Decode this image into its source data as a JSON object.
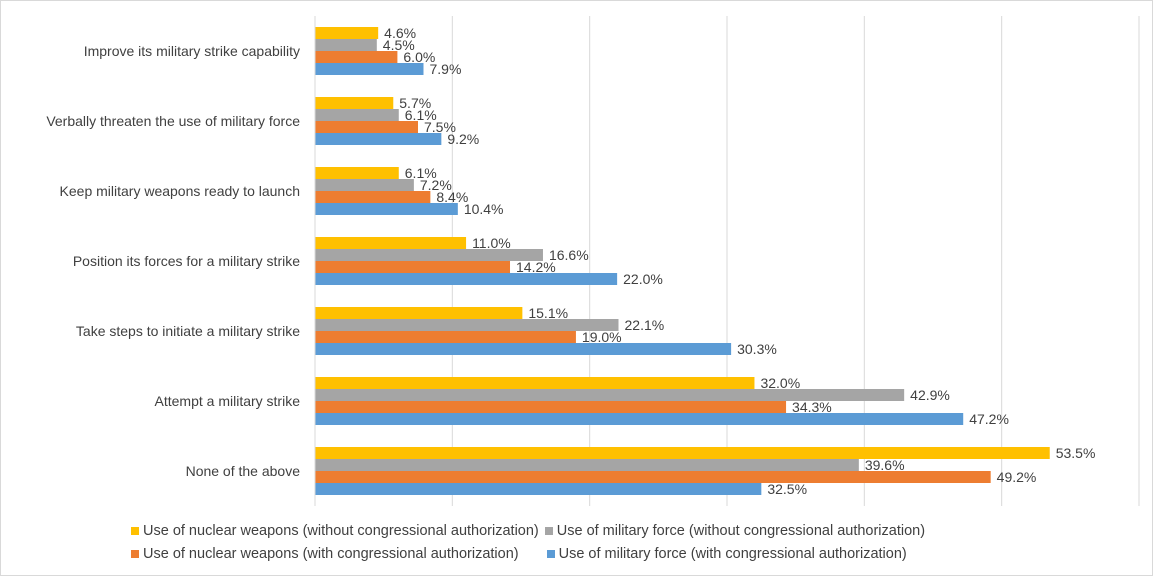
{
  "chart_data": {
    "type": "bar",
    "orientation": "horizontal",
    "categories": [
      "Improve its military strike capability",
      "Verbally threaten the use of military force",
      "Keep military weapons ready to launch",
      "Position its forces for a military strike",
      "Take steps to initiate a military strike",
      "Attempt a military strike",
      "None of the above"
    ],
    "series": [
      {
        "name": "Use of nuclear weapons (without congressional authorization)",
        "color": "#FFC000",
        "values": [
          4.6,
          5.7,
          6.1,
          11.0,
          15.1,
          32.0,
          53.5
        ],
        "labels": [
          "4.6%",
          "5.7%",
          "6.1%",
          "11.0%",
          "15.1%",
          "32.0%",
          "53.5%"
        ]
      },
      {
        "name": "Use of military force (without congressional authorization)",
        "color": "#A5A5A5",
        "values": [
          4.5,
          6.1,
          7.2,
          16.6,
          22.1,
          42.9,
          39.6
        ],
        "labels": [
          "4.5%",
          "6.1%",
          "7.2%",
          "16.6%",
          "22.1%",
          "42.9%",
          "39.6%"
        ]
      },
      {
        "name": "Use of nuclear weapons (with congressional authorization)",
        "color": "#ED7D31",
        "values": [
          6.0,
          7.5,
          8.4,
          14.2,
          19.0,
          34.3,
          49.2
        ],
        "labels": [
          "6.0%",
          "7.5%",
          "8.4%",
          "14.2%",
          "19.0%",
          "34.3%",
          "49.2%"
        ]
      },
      {
        "name": "Use of military force (with congressional authorization)",
        "color": "#5B9BD5",
        "values": [
          7.9,
          9.2,
          10.4,
          22.0,
          30.3,
          47.2,
          32.5
        ],
        "labels": [
          "7.9%",
          "9.2%",
          "10.4%",
          "22.0%",
          "30.3%",
          "47.2%",
          "32.5%"
        ]
      }
    ],
    "xlim": [
      0,
      60
    ],
    "gridlines": true,
    "legend_position": "bottom",
    "title": "",
    "xlabel": "",
    "ylabel": ""
  }
}
